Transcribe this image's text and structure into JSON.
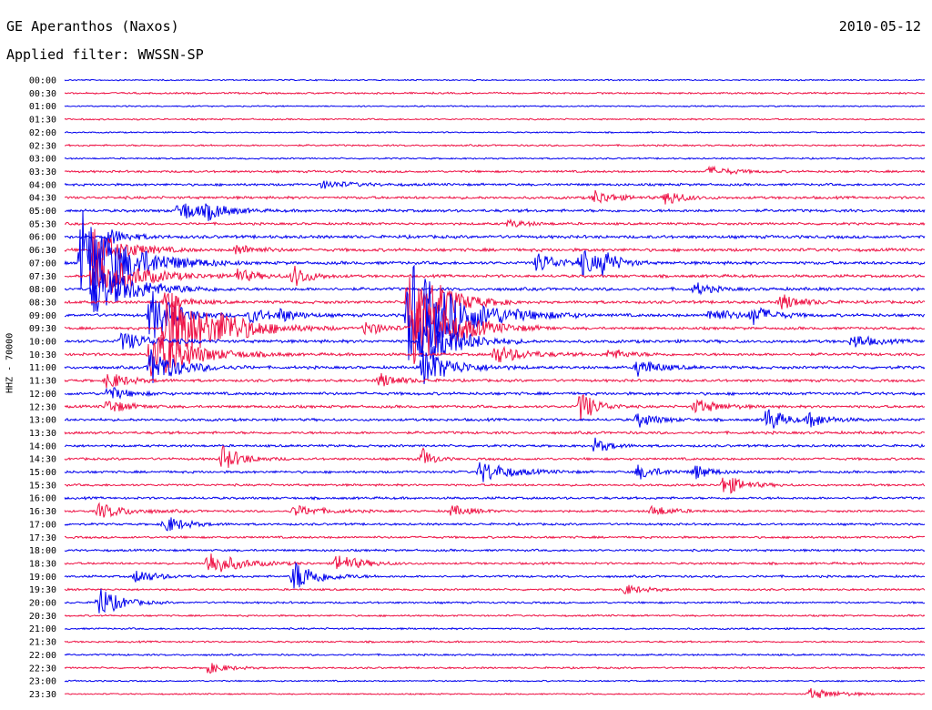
{
  "header": {
    "station": "GE Aperanthos (Naxos)",
    "date": "2010-05-12",
    "filter": "Applied filter: WWSSN-SP"
  },
  "axis": {
    "ylabel": "HHZ - 70000"
  },
  "colors": {
    "trace_a": "#0000ee",
    "trace_b": "#ee1144",
    "background": "#ffffff"
  },
  "chart_data": {
    "type": "line",
    "title": "GE Aperanthos (Naxos)",
    "subtitle": "Applied filter: WWSSN-SP",
    "xlabel": "",
    "ylabel": "HHZ - 70000",
    "grid": false,
    "legend": "none",
    "rows": [
      "00:00",
      "00:30",
      "01:00",
      "01:30",
      "02:00",
      "02:30",
      "03:00",
      "03:30",
      "04:00",
      "04:30",
      "05:00",
      "05:30",
      "06:00",
      "06:30",
      "07:00",
      "07:30",
      "08:00",
      "08:30",
      "09:00",
      "09:30",
      "10:00",
      "10:30",
      "11:00",
      "11:30",
      "12:00",
      "12:30",
      "13:00",
      "13:30",
      "14:00",
      "14:30",
      "15:00",
      "15:30",
      "16:00",
      "16:30",
      "17:00",
      "17:30",
      "18:00",
      "18:30",
      "19:00",
      "19:30",
      "20:00",
      "20:30",
      "21:00",
      "21:30",
      "22:00",
      "22:30",
      "23:00",
      "23:30"
    ],
    "row_minutes": 30,
    "x_range_minutes": [
      0,
      30
    ],
    "row_colors": [
      "trace_a",
      "trace_b"
    ],
    "noise_level": [
      0.6,
      0.8,
      0.6,
      0.7,
      0.6,
      0.8,
      0.7,
      1.0,
      1.1,
      1.2,
      1.3,
      1.1,
      1.4,
      1.4,
      1.4,
      1.3,
      1.4,
      1.3,
      1.4,
      1.2,
      1.4,
      1.3,
      1.3,
      1.2,
      1.3,
      1.2,
      1.2,
      1.2,
      1.1,
      1.1,
      1.1,
      1.0,
      1.1,
      1.0,
      1.0,
      1.0,
      1.0,
      1.0,
      1.0,
      0.9,
      0.9,
      0.8,
      0.8,
      0.8,
      0.8,
      0.8,
      0.7,
      0.6
    ],
    "events": [
      {
        "row": 7,
        "minute": 22.5,
        "amplitude": 5,
        "duration": 1.2
      },
      {
        "row": 8,
        "minute": 9.0,
        "amplitude": 4,
        "duration": 1.5
      },
      {
        "row": 9,
        "minute": 18.5,
        "amplitude": 8,
        "duration": 1.0
      },
      {
        "row": 9,
        "minute": 21.0,
        "amplitude": 9,
        "duration": 0.8
      },
      {
        "row": 10,
        "minute": 4.0,
        "amplitude": 12,
        "duration": 1.2
      },
      {
        "row": 10,
        "minute": 5.0,
        "amplitude": 7,
        "duration": 1.0
      },
      {
        "row": 11,
        "minute": 15.5,
        "amplitude": 4,
        "duration": 1.0
      },
      {
        "row": 12,
        "minute": 1.5,
        "amplitude": 10,
        "duration": 1.0
      },
      {
        "row": 13,
        "minute": 1.0,
        "amplitude": 25,
        "duration": 1.5
      },
      {
        "row": 13,
        "minute": 6.0,
        "amplitude": 6,
        "duration": 1.0
      },
      {
        "row": 14,
        "minute": 0.6,
        "amplitude": 60,
        "duration": 2.2
      },
      {
        "row": 14,
        "minute": 16.5,
        "amplitude": 12,
        "duration": 1.0
      },
      {
        "row": 14,
        "minute": 18.0,
        "amplitude": 14,
        "duration": 1.0
      },
      {
        "row": 14,
        "minute": 18.8,
        "amplitude": 12,
        "duration": 0.7
      },
      {
        "row": 15,
        "minute": 1.0,
        "amplitude": 30,
        "duration": 2.0
      },
      {
        "row": 15,
        "minute": 6.0,
        "amplitude": 8,
        "duration": 1.0
      },
      {
        "row": 15,
        "minute": 8.0,
        "amplitude": 12,
        "duration": 0.8
      },
      {
        "row": 16,
        "minute": 1.0,
        "amplitude": 30,
        "duration": 2.0
      },
      {
        "row": 16,
        "minute": 22.0,
        "amplitude": 7,
        "duration": 0.8
      },
      {
        "row": 17,
        "minute": 12.0,
        "amplitude": 60,
        "duration": 1.5
      },
      {
        "row": 17,
        "minute": 3.5,
        "amplitude": 10,
        "duration": 1.0
      },
      {
        "row": 17,
        "minute": 25.0,
        "amplitude": 9,
        "duration": 1.0
      },
      {
        "row": 18,
        "minute": 3.0,
        "amplitude": 30,
        "duration": 1.2
      },
      {
        "row": 18,
        "minute": 12.0,
        "amplitude": 60,
        "duration": 2.5
      },
      {
        "row": 18,
        "minute": 6.5,
        "amplitude": 8,
        "duration": 1.0
      },
      {
        "row": 18,
        "minute": 7.5,
        "amplitude": 6,
        "duration": 1.0
      },
      {
        "row": 18,
        "minute": 22.5,
        "amplitude": 8,
        "duration": 1.2
      },
      {
        "row": 18,
        "minute": 24.0,
        "amplitude": 10,
        "duration": 1.0
      },
      {
        "row": 19,
        "minute": 3.5,
        "amplitude": 45,
        "duration": 2.5
      },
      {
        "row": 19,
        "minute": 12.2,
        "amplitude": 45,
        "duration": 2.0
      },
      {
        "row": 19,
        "minute": 5.5,
        "amplitude": 8,
        "duration": 1.0
      },
      {
        "row": 19,
        "minute": 10.5,
        "amplitude": 8,
        "duration": 1.0
      },
      {
        "row": 20,
        "minute": 2.0,
        "amplitude": 10,
        "duration": 1.5
      },
      {
        "row": 20,
        "minute": 12.5,
        "amplitude": 40,
        "duration": 1.5
      },
      {
        "row": 20,
        "minute": 27.5,
        "amplitude": 8,
        "duration": 1.0
      },
      {
        "row": 21,
        "minute": 3.0,
        "amplitude": 30,
        "duration": 2.0
      },
      {
        "row": 21,
        "minute": 15.0,
        "amplitude": 10,
        "duration": 1.5
      },
      {
        "row": 21,
        "minute": 19.0,
        "amplitude": 6,
        "duration": 1.0
      },
      {
        "row": 22,
        "minute": 3.0,
        "amplitude": 20,
        "duration": 1.5
      },
      {
        "row": 22,
        "minute": 12.5,
        "amplitude": 20,
        "duration": 1.5
      },
      {
        "row": 22,
        "minute": 20.0,
        "amplitude": 10,
        "duration": 1.0
      },
      {
        "row": 23,
        "minute": 1.5,
        "amplitude": 10,
        "duration": 1.0
      },
      {
        "row": 23,
        "minute": 11.0,
        "amplitude": 8,
        "duration": 1.0
      },
      {
        "row": 24,
        "minute": 1.5,
        "amplitude": 8,
        "duration": 1.0
      },
      {
        "row": 25,
        "minute": 1.5,
        "amplitude": 8,
        "duration": 1.0
      },
      {
        "row": 25,
        "minute": 18.0,
        "amplitude": 18,
        "duration": 0.8
      },
      {
        "row": 25,
        "minute": 22.0,
        "amplitude": 8,
        "duration": 1.2
      },
      {
        "row": 26,
        "minute": 20.0,
        "amplitude": 8,
        "duration": 1.0
      },
      {
        "row": 26,
        "minute": 24.5,
        "amplitude": 15,
        "duration": 0.8
      },
      {
        "row": 26,
        "minute": 26.0,
        "amplitude": 8,
        "duration": 1.0
      },
      {
        "row": 28,
        "minute": 18.5,
        "amplitude": 8,
        "duration": 0.8
      },
      {
        "row": 29,
        "minute": 5.5,
        "amplitude": 14,
        "duration": 1.0
      },
      {
        "row": 29,
        "minute": 12.5,
        "amplitude": 12,
        "duration": 0.5
      },
      {
        "row": 30,
        "minute": 14.5,
        "amplitude": 12,
        "duration": 1.5
      },
      {
        "row": 30,
        "minute": 20.0,
        "amplitude": 8,
        "duration": 1.0
      },
      {
        "row": 30,
        "minute": 22.0,
        "amplitude": 8,
        "duration": 0.8
      },
      {
        "row": 31,
        "minute": 23.0,
        "amplitude": 12,
        "duration": 1.0
      },
      {
        "row": 33,
        "minute": 1.2,
        "amplitude": 8,
        "duration": 1.5
      },
      {
        "row": 33,
        "minute": 8.0,
        "amplitude": 6,
        "duration": 1.5
      },
      {
        "row": 33,
        "minute": 13.5,
        "amplitude": 6,
        "duration": 1.0
      },
      {
        "row": 33,
        "minute": 20.5,
        "amplitude": 6,
        "duration": 1.0
      },
      {
        "row": 34,
        "minute": 3.5,
        "amplitude": 10,
        "duration": 1.0
      },
      {
        "row": 37,
        "minute": 5.0,
        "amplitude": 14,
        "duration": 1.5
      },
      {
        "row": 37,
        "minute": 9.5,
        "amplitude": 10,
        "duration": 1.2
      },
      {
        "row": 38,
        "minute": 8.0,
        "amplitude": 18,
        "duration": 1.2
      },
      {
        "row": 38,
        "minute": 2.5,
        "amplitude": 8,
        "duration": 1.0
      },
      {
        "row": 39,
        "minute": 19.5,
        "amplitude": 6,
        "duration": 1.0
      },
      {
        "row": 40,
        "minute": 1.2,
        "amplitude": 18,
        "duration": 1.0
      },
      {
        "row": 45,
        "minute": 5.0,
        "amplitude": 6,
        "duration": 1.0
      },
      {
        "row": 47,
        "minute": 26.0,
        "amplitude": 6,
        "duration": 1.5
      }
    ]
  }
}
